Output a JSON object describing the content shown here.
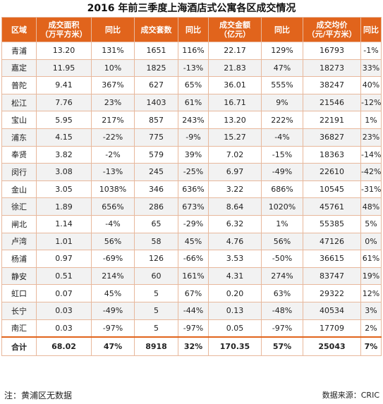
{
  "title": "2016 年前三季度上海酒店式公寓各区成交情况",
  "headers": [
    "区域",
    "成交面积\n（万平方米）",
    "同比",
    "成交套数",
    "同比",
    "成交金额\n（亿元）",
    "同比",
    "成交均价\n（元/平方米）",
    "同比"
  ],
  "rows": [
    [
      "青浦",
      "13.20",
      "131%",
      "1651",
      "116%",
      "22.17",
      "129%",
      "16793",
      "-1%"
    ],
    [
      "嘉定",
      "11.95",
      "10%",
      "1825",
      "-13%",
      "21.83",
      "47%",
      "18273",
      "33%"
    ],
    [
      "普陀",
      "9.41",
      "367%",
      "627",
      "65%",
      "36.01",
      "555%",
      "38247",
      "40%"
    ],
    [
      "松江",
      "7.76",
      "23%",
      "1403",
      "61%",
      "16.71",
      "9%",
      "21546",
      "-12%"
    ],
    [
      "宝山",
      "5.95",
      "217%",
      "857",
      "243%",
      "13.20",
      "222%",
      "22191",
      "1%"
    ],
    [
      "浦东",
      "4.15",
      "-22%",
      "775",
      "-9%",
      "15.27",
      "-4%",
      "36827",
      "23%"
    ],
    [
      "奉贤",
      "3.82",
      "-2%",
      "579",
      "39%",
      "7.02",
      "-15%",
      "18363",
      "-14%"
    ],
    [
      "闵行",
      "3.08",
      "-13%",
      "245",
      "-25%",
      "6.97",
      "-49%",
      "22610",
      "-42%"
    ],
    [
      "金山",
      "3.05",
      "1038%",
      "346",
      "636%",
      "3.22",
      "686%",
      "10545",
      "-31%"
    ],
    [
      "徐汇",
      "1.89",
      "656%",
      "286",
      "673%",
      "8.64",
      "1020%",
      "45761",
      "48%"
    ],
    [
      "闸北",
      "1.14",
      "-4%",
      "65",
      "-29%",
      "6.32",
      "1%",
      "55385",
      "5%"
    ],
    [
      "卢湾",
      "1.01",
      "56%",
      "58",
      "45%",
      "4.76",
      "56%",
      "47126",
      "0%"
    ],
    [
      "杨浦",
      "0.97",
      "-69%",
      "126",
      "-66%",
      "3.53",
      "-50%",
      "36615",
      "61%"
    ],
    [
      "静安",
      "0.51",
      "214%",
      "60",
      "161%",
      "4.31",
      "274%",
      "83747",
      "19%"
    ],
    [
      "虹口",
      "0.07",
      "45%",
      "5",
      "67%",
      "0.20",
      "63%",
      "29322",
      "12%"
    ],
    [
      "长宁",
      "0.03",
      "-49%",
      "5",
      "-44%",
      "0.13",
      "-48%",
      "40534",
      "3%"
    ],
    [
      "南汇",
      "0.03",
      "-97%",
      "5",
      "-97%",
      "0.05",
      "-97%",
      "17709",
      "2%"
    ]
  ],
  "total": [
    "合计",
    "68.02",
    "47%",
    "8918",
    "32%",
    "170.35",
    "57%",
    "25043",
    "7%"
  ],
  "footnote": "注：黄浦区无数据",
  "source": "数据来源：CRIC",
  "colors": {
    "header_bg": "#e1641c",
    "header_text": "#ffffff",
    "row_alt": "#f2f2f2",
    "border": "#e8b89c"
  }
}
